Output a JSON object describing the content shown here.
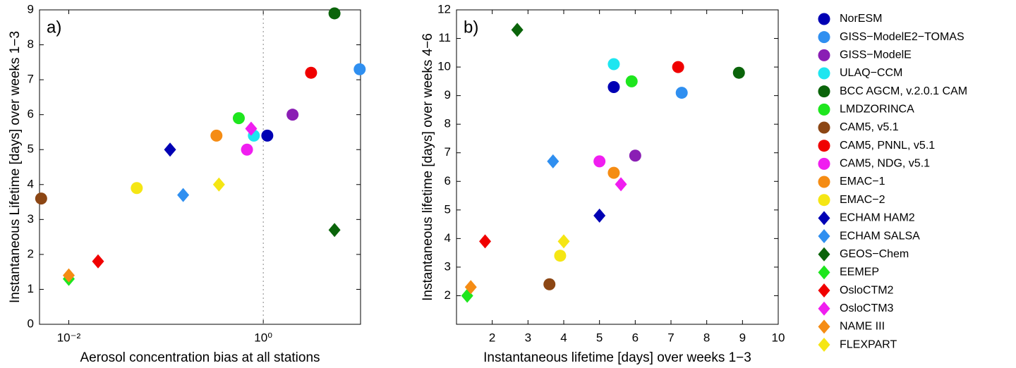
{
  "chart_data": [
    {
      "type": "scatter",
      "annotation": "a)",
      "xlabel": "Aerosol concentration bias at all stations",
      "ylabel": "Instantaneous Lifetime [days] over weeks 1−3",
      "xlog": true,
      "xlim": [
        0.005,
        10
      ],
      "xticks": [
        {
          "value": 0.01,
          "label": "10⁻²"
        },
        {
          "value": 1,
          "label": "10⁰"
        }
      ],
      "ylim": [
        0,
        9
      ],
      "yticks": [
        0,
        1,
        2,
        3,
        4,
        5,
        6,
        7,
        8,
        9
      ],
      "vline": 1,
      "series": [
        {
          "name": "NorESM",
          "color": "#0000b4",
          "marker": "circle",
          "x": 1.1,
          "y": 5.4
        },
        {
          "name": "GISS−ModelE2−TOMAS",
          "color": "#2f8ff0",
          "marker": "circle",
          "x": 9.8,
          "y": 7.3
        },
        {
          "name": "GISS−ModelE",
          "color": "#8a1eb4",
          "marker": "circle",
          "x": 2.0,
          "y": 6.0
        },
        {
          "name": "ULAQ−CCM",
          "color": "#1ee6f0",
          "marker": "circle",
          "x": 0.8,
          "y": 5.4
        },
        {
          "name": "BCC AGCM, v.2.0.1 CAM",
          "color": "#0a640a",
          "marker": "circle",
          "x": 5.4,
          "y": 8.9
        },
        {
          "name": "LMDZORINCA",
          "color": "#1ee61e",
          "marker": "circle",
          "x": 0.56,
          "y": 5.9
        },
        {
          "name": "CAM5, v5.1",
          "color": "#8c4614",
          "marker": "circle",
          "x": 0.0052,
          "y": 3.6
        },
        {
          "name": "CAM5, PNNL, v5.1",
          "color": "#f00000",
          "marker": "circle",
          "x": 3.1,
          "y": 7.2
        },
        {
          "name": "CAM5, NDG, v5.1",
          "color": "#f01ef0",
          "marker": "circle",
          "x": 0.68,
          "y": 5.0
        },
        {
          "name": "EMAC−1",
          "color": "#f58c14",
          "marker": "circle",
          "x": 0.33,
          "y": 5.4
        },
        {
          "name": "EMAC−2",
          "color": "#f5e614",
          "marker": "circle",
          "x": 0.05,
          "y": 3.9
        },
        {
          "name": "ECHAM HAM2",
          "color": "#0000b4",
          "marker": "diamond",
          "x": 0.11,
          "y": 5.0
        },
        {
          "name": "ECHAM SALSA",
          "color": "#2f8ff0",
          "marker": "diamond",
          "x": 0.15,
          "y": 3.7
        },
        {
          "name": "GEOS−Chem",
          "color": "#0a640a",
          "marker": "diamond",
          "x": 5.4,
          "y": 2.7
        },
        {
          "name": "EEMEP",
          "color": "#1ee61e",
          "marker": "diamond",
          "x": 0.01,
          "y": 1.3
        },
        {
          "name": "OsloCTM2",
          "color": "#f00000",
          "marker": "diamond",
          "x": 0.02,
          "y": 1.8
        },
        {
          "name": "OsloCTM3",
          "color": "#f01ef0",
          "marker": "diamond",
          "x": 0.75,
          "y": 5.6
        },
        {
          "name": "NAME III",
          "color": "#f58c14",
          "marker": "diamond",
          "x": 0.01,
          "y": 1.4
        },
        {
          "name": "FLEXPART",
          "color": "#f5e614",
          "marker": "diamond",
          "x": 0.35,
          "y": 4.0
        }
      ]
    },
    {
      "type": "scatter",
      "annotation": "b)",
      "xlabel": "Instantaneous lifetime [days] over weeks 1−3",
      "ylabel": "Instantaneous lifetime [days] over weeks 4−6",
      "xlog": false,
      "xlim": [
        1,
        10
      ],
      "xticks": [
        2,
        3,
        4,
        5,
        6,
        7,
        8,
        9,
        10
      ],
      "ylim": [
        1,
        12
      ],
      "yticks": [
        2,
        3,
        4,
        5,
        6,
        7,
        8,
        9,
        10,
        11,
        12
      ],
      "series": [
        {
          "color": "#0000b4",
          "marker": "circle",
          "x": 5.4,
          "y": 9.3
        },
        {
          "color": "#2f8ff0",
          "marker": "circle",
          "x": 7.3,
          "y": 9.1
        },
        {
          "color": "#8a1eb4",
          "marker": "circle",
          "x": 6.0,
          "y": 6.9
        },
        {
          "color": "#1ee6f0",
          "marker": "circle",
          "x": 5.4,
          "y": 10.1
        },
        {
          "color": "#0a640a",
          "marker": "circle",
          "x": 8.9,
          "y": 9.8
        },
        {
          "color": "#1ee61e",
          "marker": "circle",
          "x": 5.9,
          "y": 9.5
        },
        {
          "color": "#8c4614",
          "marker": "circle",
          "x": 3.6,
          "y": 2.4
        },
        {
          "color": "#f00000",
          "marker": "circle",
          "x": 7.2,
          "y": 10.0
        },
        {
          "color": "#f01ef0",
          "marker": "circle",
          "x": 5.0,
          "y": 6.7
        },
        {
          "color": "#f58c14",
          "marker": "circle",
          "x": 5.4,
          "y": 6.3
        },
        {
          "color": "#f5e614",
          "marker": "circle",
          "x": 3.9,
          "y": 3.4
        },
        {
          "color": "#0000b4",
          "marker": "diamond",
          "x": 5.0,
          "y": 4.8
        },
        {
          "color": "#2f8ff0",
          "marker": "diamond",
          "x": 3.7,
          "y": 6.7
        },
        {
          "color": "#0a640a",
          "marker": "diamond",
          "x": 2.7,
          "y": 11.3
        },
        {
          "color": "#1ee61e",
          "marker": "diamond",
          "x": 1.3,
          "y": 2.0
        },
        {
          "color": "#f00000",
          "marker": "diamond",
          "x": 1.8,
          "y": 3.9
        },
        {
          "color": "#f01ef0",
          "marker": "diamond",
          "x": 5.6,
          "y": 5.9
        },
        {
          "color": "#f58c14",
          "marker": "diamond",
          "x": 1.4,
          "y": 2.3
        },
        {
          "color": "#f5e614",
          "marker": "diamond",
          "x": 4.0,
          "y": 3.9
        }
      ]
    }
  ]
}
